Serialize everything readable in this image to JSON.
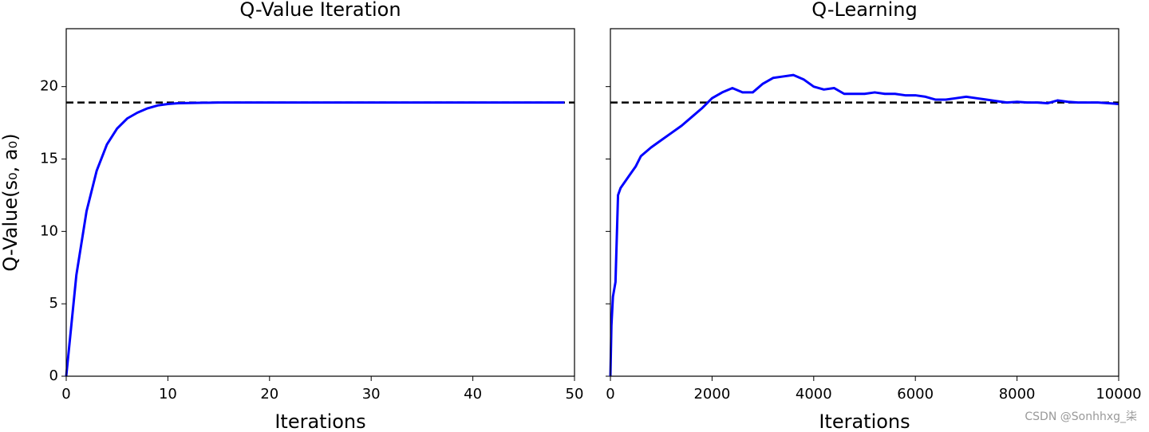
{
  "chart_data": [
    {
      "type": "line",
      "title": "Q-Value Iteration",
      "xlabel": "Iterations",
      "ylabel": "Q-Value(s₀, a₀)",
      "x": [
        0,
        1,
        2,
        3,
        4,
        5,
        6,
        7,
        8,
        9,
        10,
        11,
        12,
        13,
        14,
        15,
        16,
        17,
        18,
        19,
        20,
        21,
        22,
        23,
        24,
        25,
        26,
        27,
        28,
        29,
        30,
        31,
        32,
        33,
        34,
        35,
        36,
        37,
        38,
        39,
        40,
        41,
        42,
        43,
        44,
        45,
        46,
        47,
        48,
        49
      ],
      "series": [
        {
          "color": "#0000ff",
          "values": [
            0,
            7.0,
            11.4,
            14.2,
            16.0,
            17.1,
            17.8,
            18.2,
            18.5,
            18.7,
            18.8,
            18.85,
            18.87,
            18.88,
            18.89,
            18.9,
            18.9,
            18.9,
            18.9,
            18.9,
            18.9,
            18.9,
            18.9,
            18.9,
            18.9,
            18.9,
            18.9,
            18.9,
            18.9,
            18.9,
            18.9,
            18.9,
            18.9,
            18.9,
            18.9,
            18.9,
            18.9,
            18.9,
            18.9,
            18.9,
            18.9,
            18.9,
            18.9,
            18.9,
            18.9,
            18.9,
            18.9,
            18.9,
            18.9,
            18.9
          ]
        }
      ],
      "hline": {
        "value": 18.9,
        "color": "#000000"
      },
      "xlim": [
        0,
        50
      ],
      "xticks": [
        0,
        10,
        20,
        30,
        40,
        50
      ],
      "ylim": [
        0,
        24
      ],
      "yticks": [
        0,
        5,
        10,
        15,
        20
      ],
      "ytick_labels": true
    },
    {
      "type": "line",
      "title": "Q-Learning",
      "xlabel": "Iterations",
      "x": [
        0,
        20,
        50,
        100,
        150,
        200,
        300,
        400,
        500,
        600,
        800,
        1000,
        1200,
        1400,
        1600,
        1800,
        2000,
        2200,
        2400,
        2600,
        2800,
        3000,
        3200,
        3400,
        3600,
        3800,
        4000,
        4200,
        4400,
        4600,
        4800,
        5000,
        5200,
        5400,
        5600,
        5800,
        6000,
        6200,
        6400,
        6600,
        6800,
        7000,
        7200,
        7400,
        7600,
        7800,
        8000,
        8200,
        8400,
        8600,
        8800,
        9000,
        9200,
        9400,
        9600,
        9800,
        10000
      ],
      "series": [
        {
          "color": "#0000ff",
          "values": [
            0,
            3.5,
            5.5,
            6.5,
            12.5,
            13,
            13.5,
            14,
            14.5,
            15.2,
            15.8,
            16.3,
            16.8,
            17.3,
            17.9,
            18.5,
            19.2,
            19.6,
            19.9,
            19.6,
            19.6,
            20.2,
            20.6,
            20.7,
            20.8,
            20.5,
            20.0,
            19.8,
            19.9,
            19.5,
            19.5,
            19.5,
            19.6,
            19.5,
            19.5,
            19.4,
            19.4,
            19.3,
            19.1,
            19.1,
            19.2,
            19.3,
            19.2,
            19.1,
            19.0,
            18.9,
            18.95,
            18.9,
            18.9,
            18.85,
            19.05,
            18.95,
            18.9,
            18.9,
            18.9,
            18.85,
            18.8
          ]
        }
      ],
      "hline": {
        "value": 18.9,
        "color": "#000000"
      },
      "xlim": [
        0,
        10000
      ],
      "xticks": [
        0,
        2000,
        4000,
        6000,
        8000,
        10000
      ],
      "ylim": [
        0,
        24
      ],
      "yticks": [
        0,
        5,
        10,
        15,
        20
      ],
      "ytick_labels": false
    }
  ],
  "watermark": "CSDN @Sonhhxg_柒"
}
